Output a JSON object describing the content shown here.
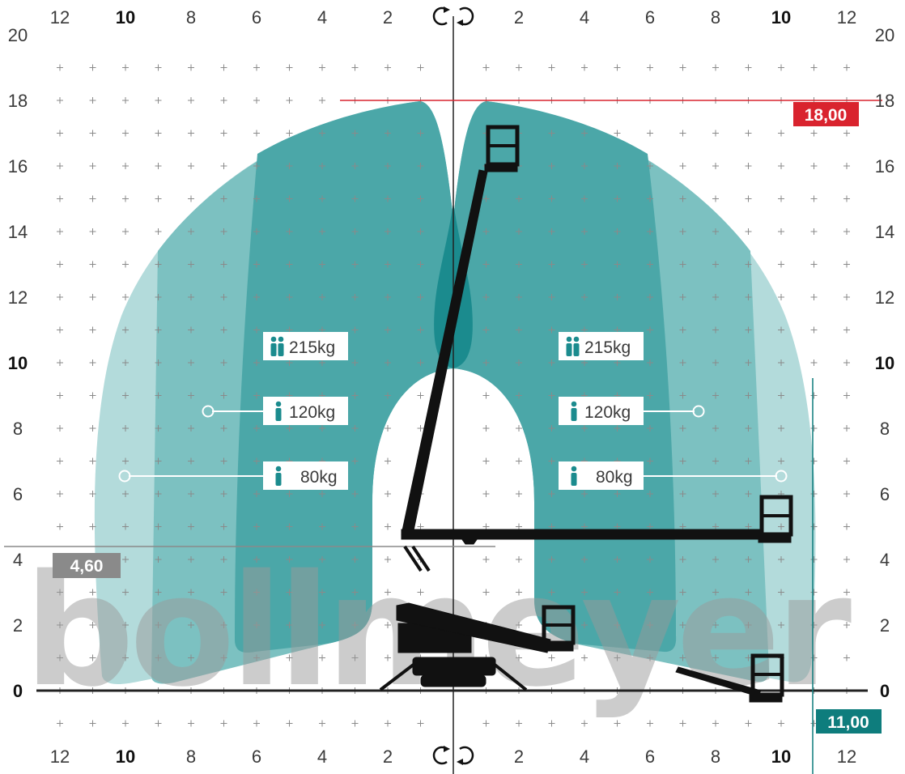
{
  "diagram": {
    "axis_x_labels": [
      "12",
      "10",
      "8",
      "6",
      "4",
      "2",
      "2",
      "4",
      "6",
      "8",
      "10",
      "12"
    ],
    "axis_y_labels": [
      "20",
      "18",
      "16",
      "14",
      "12",
      "10",
      "8",
      "6",
      "4",
      "2",
      "0"
    ],
    "bold_labels": [
      "10",
      "0"
    ],
    "x_range": [
      -12,
      12
    ],
    "y_range": [
      0,
      20
    ],
    "rotate_icon": "rotate-arrows-icon",
    "max_height": {
      "label": "18,00",
      "value": 18.0,
      "color": "#d9232e"
    },
    "max_outreach": {
      "label": "11,00",
      "value": 11.0,
      "color": "#0e7d7d"
    },
    "up_and_over": {
      "label": "4,60",
      "value": 4.6,
      "color": "#8a8a8a"
    },
    "loads": [
      {
        "label": "215kg",
        "persons": 2,
        "icon": "two-persons-icon"
      },
      {
        "label": "120kg",
        "persons": 1,
        "icon": "person-icon"
      },
      {
        "label": "80kg",
        "persons": 1,
        "icon": "person-icon"
      }
    ],
    "zone_colors": {
      "light": "#b3dbdb",
      "mid": "#7cc1c1",
      "main": "#4ba7a8",
      "core": "#1b8b8e"
    },
    "watermark_text": "bollmeyer"
  }
}
